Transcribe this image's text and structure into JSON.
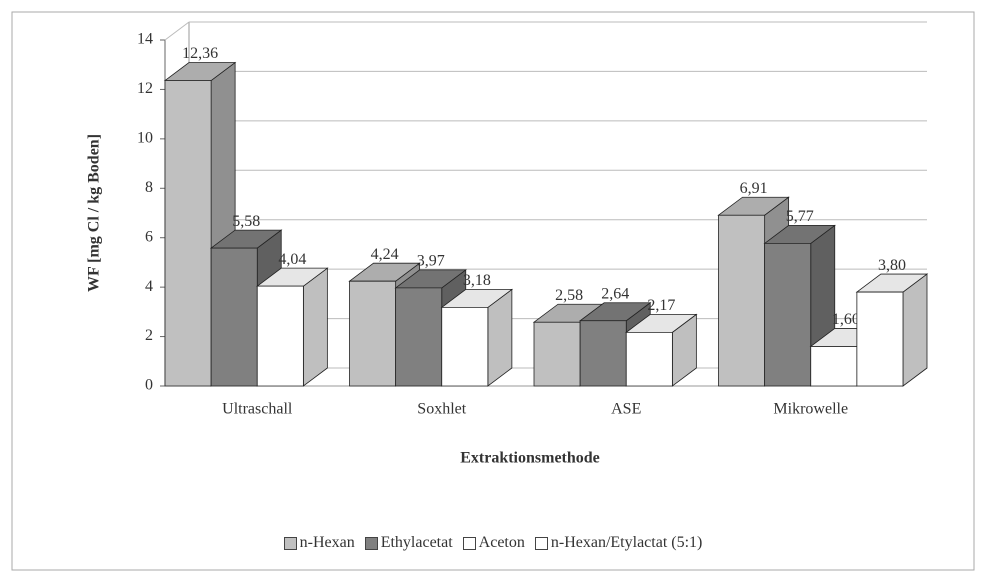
{
  "chart_data": {
    "type": "bar3d",
    "categories": [
      "Ultraschall",
      "Soxhlet",
      "ASE",
      "Mikrowelle"
    ],
    "series": [
      {
        "name": "n-Hexan",
        "color": "#c0c0c0",
        "values": [
          12.36,
          4.24,
          2.58,
          6.91
        ],
        "value_labels": [
          "12,36",
          "4,24",
          "2,58",
          "6,91"
        ]
      },
      {
        "name": "Ethylacetat",
        "color": "#808080",
        "values": [
          5.58,
          3.97,
          2.64,
          5.77
        ],
        "value_labels": [
          "5,58",
          "3,97",
          "2,64",
          "5,77"
        ]
      },
      {
        "name": "Aceton",
        "color": "#ffffff",
        "values": [
          4.04,
          3.18,
          2.17,
          1.6
        ],
        "value_labels": [
          "4,04",
          "3,18",
          "2,17",
          "1,60"
        ]
      },
      {
        "name": "n-Hexan/Etylactat (5:1)",
        "color": "#ffffff",
        "values": [
          null,
          null,
          null,
          3.8
        ],
        "value_labels": [
          null,
          null,
          null,
          "3,80"
        ]
      }
    ],
    "y_label": "WF [mg Cl / kg Boden]",
    "x_label": "Extraktionsmethode",
    "ylim": [
      0,
      14
    ],
    "yticks": [
      0,
      2,
      4,
      6,
      8,
      10,
      12,
      14
    ],
    "grid": true,
    "legend": "bottom"
  }
}
